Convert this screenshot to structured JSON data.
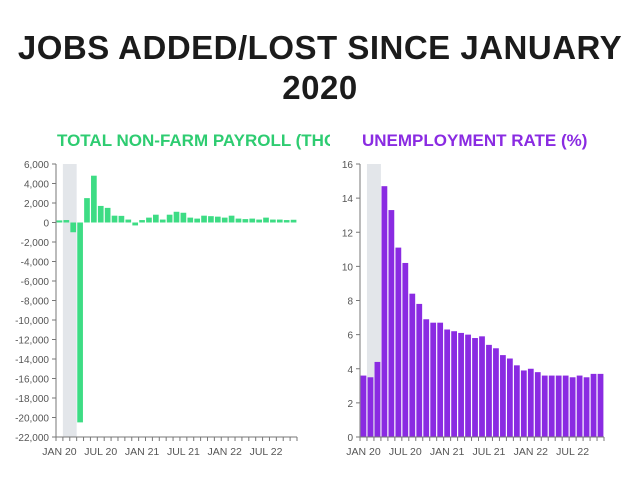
{
  "title_line1": "JOBS ADDED/LOST SINCE JANUARY",
  "title_line2": "2020",
  "colors": {
    "payroll": "#3ddc84",
    "unemployment": "#8a2be2",
    "shade": "#e3e6ea",
    "axis": "#777777",
    "text": "#555555"
  },
  "chart_data": [
    {
      "type": "bar",
      "title": "TOTAL NON-FARM PAYROLL (THOUSANDS)",
      "ylim": [
        -22000,
        6000
      ],
      "yticks": [
        6000,
        4000,
        2000,
        0,
        -2000,
        -4000,
        -6000,
        -8000,
        -10000,
        -12000,
        -14000,
        -16000,
        -18000,
        -20000,
        -22000
      ],
      "ytick_labels": [
        "6,000",
        "4,000",
        "2,000",
        "0",
        "-2,000",
        "-4,000",
        "-6,000",
        "-8,000",
        "-10,000",
        "-12,000",
        "-14,000",
        "-16,000",
        "-18,000",
        "-20,000",
        "-22,000"
      ],
      "xtick_labels": [
        "JAN 20",
        "JUL 20",
        "JAN 21",
        "JUL 21",
        "JAN 22",
        "JUL 22"
      ],
      "xtick_index": [
        0,
        6,
        12,
        18,
        24,
        30
      ],
      "shade_index": [
        1,
        3
      ],
      "values": [
        214,
        251,
        -1000,
        -20500,
        2500,
        4800,
        1700,
        1500,
        700,
        680,
        300,
        -300,
        250,
        500,
        800,
        300,
        800,
        1100,
        1000,
        500,
        400,
        700,
        650,
        600,
        500,
        700,
        400,
        350,
        400,
        300,
        500,
        300,
        300,
        250,
        280
      ]
    },
    {
      "type": "bar",
      "title": "UNEMPLOYMENT RATE (%)",
      "ylim": [
        0,
        16
      ],
      "yticks": [
        16,
        14,
        12,
        10,
        8,
        6,
        4,
        2,
        0
      ],
      "ytick_labels": [
        "16",
        "14",
        "12",
        "10",
        "8",
        "6",
        "4",
        "2",
        "0"
      ],
      "xtick_labels": [
        "JAN 20",
        "JUL 20",
        "JAN 21",
        "JUL 21",
        "JAN 22",
        "JUL 22"
      ],
      "xtick_index": [
        0,
        6,
        12,
        18,
        24,
        30
      ],
      "shade_index": [
        1,
        3
      ],
      "values": [
        3.6,
        3.5,
        4.4,
        14.7,
        13.3,
        11.1,
        10.2,
        8.4,
        7.8,
        6.9,
        6.7,
        6.7,
        6.3,
        6.2,
        6.1,
        6.0,
        5.8,
        5.9,
        5.4,
        5.2,
        4.8,
        4.6,
        4.2,
        3.9,
        4.0,
        3.8,
        3.6,
        3.6,
        3.6,
        3.6,
        3.5,
        3.6,
        3.5,
        3.7,
        3.7
      ]
    }
  ]
}
